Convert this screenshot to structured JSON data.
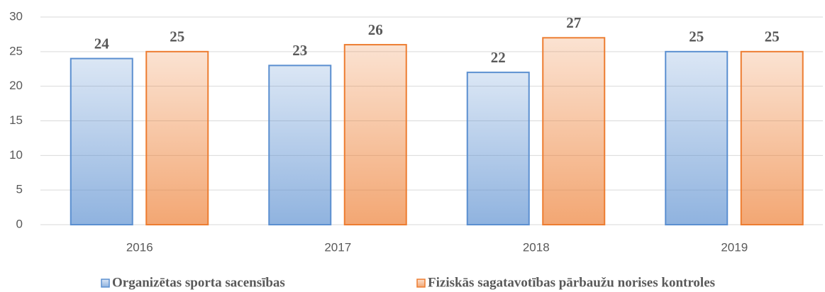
{
  "chart_data": {
    "type": "bar",
    "categories": [
      "2016",
      "2017",
      "2018",
      "2019"
    ],
    "series": [
      {
        "name": "Organizētas sporta sacensības",
        "color": "#5b8fd0",
        "values": [
          24,
          23,
          22,
          25
        ]
      },
      {
        "name": "Fiziskās sagatavotības pārbaužu norises kontroles",
        "color": "#ed7d31",
        "values": [
          25,
          26,
          27,
          25
        ]
      }
    ],
    "ylim": [
      0,
      30
    ],
    "yticks": [
      0,
      5,
      10,
      15,
      20,
      25,
      30
    ],
    "grid": true,
    "legend": "bottom"
  }
}
